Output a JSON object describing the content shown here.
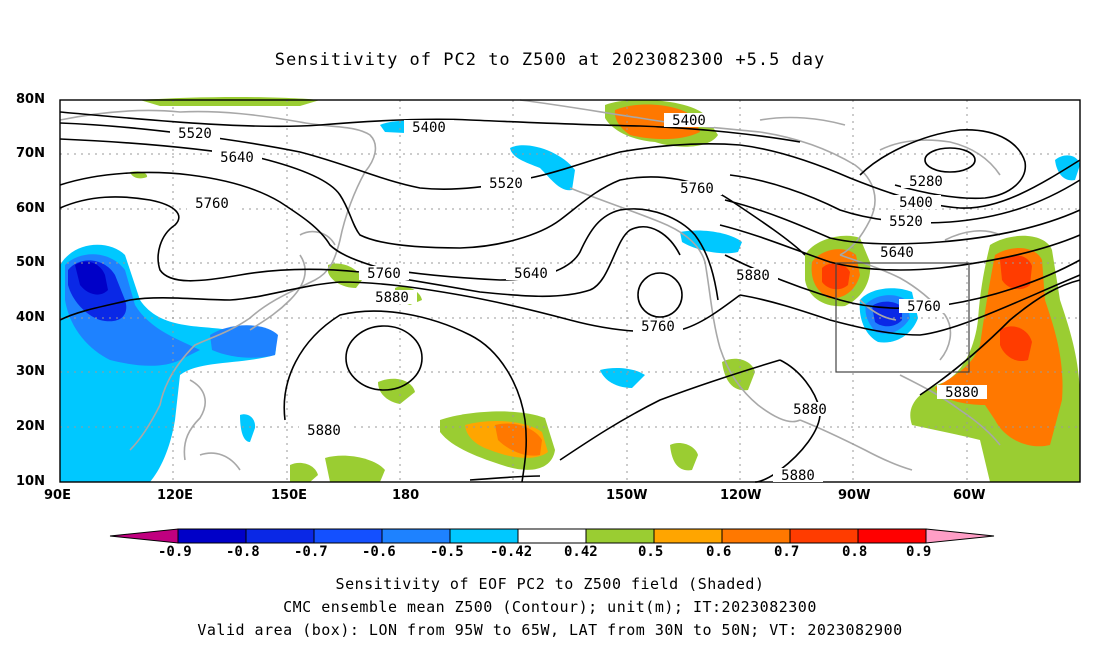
{
  "title": "Sensitivity of PC2 to Z500 at 2023082300 +5.5 day",
  "lat_labels": [
    "80N",
    "70N",
    "60N",
    "50N",
    "40N",
    "30N",
    "20N",
    "10N"
  ],
  "lon_labels": [
    "90E",
    "120E",
    "150E",
    "180",
    "150W",
    "120W",
    "90W",
    "60W"
  ],
  "contour_labels": [
    "5520",
    "5640",
    "5760",
    "5400",
    "5520",
    "5400",
    "5760",
    "5640",
    "5760",
    "5880",
    "5760",
    "5880",
    "5280",
    "5400",
    "5520",
    "5640",
    "5760",
    "5880",
    "5880",
    "5880",
    "5880"
  ],
  "colorbar": {
    "labels": [
      "-0.9",
      "-0.8",
      "-0.7",
      "-0.6",
      "-0.5",
      "-0.42",
      "0.42",
      "0.5",
      "0.6",
      "0.7",
      "0.8",
      "0.9"
    ],
    "colors": [
      "#c0007f",
      "#0000c8",
      "#0a28e6",
      "#1450ff",
      "#1e82ff",
      "#00c8ff",
      "#ffffff",
      "#9acd32",
      "#ffa500",
      "#ff7800",
      "#ff3c00",
      "#ff0000",
      "#ff9ec6"
    ]
  },
  "captions": [
    "Sensitivity of EOF PC2 to Z500 field (Shaded)",
    "CMC ensemble mean Z500 (Contour); unit(m); IT:2023082300",
    "Valid area (box): LON from 95W to 65W, LAT from 30N to 50N; VT: 2023082900"
  ]
}
